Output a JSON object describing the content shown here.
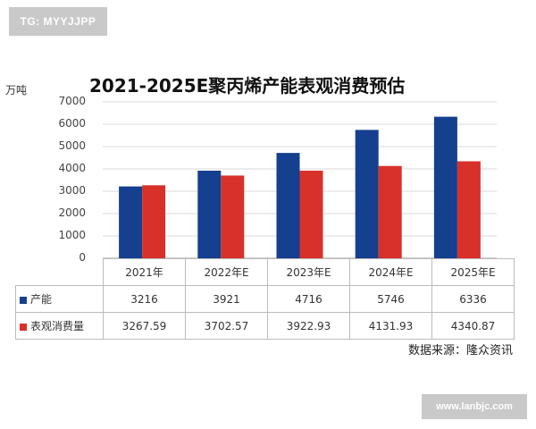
{
  "badges": {
    "top_left": "TG: MYYJJPP",
    "bottom_right": "www.lanbjc.com"
  },
  "source_text": "数据来源：隆众资讯",
  "colors": {
    "capacity": "#153f8f",
    "consumption": "#d8312a",
    "grid": "#d9d9d9",
    "axis": "#9a9a9a"
  },
  "chart_data": {
    "type": "bar",
    "title": "2021-2025E聚丙烯产能表观消费预估",
    "ylabel": "万吨",
    "xlabel": "",
    "ylim": [
      0,
      7000
    ],
    "yticks": [
      "0",
      "1000",
      "2000",
      "3000",
      "4000",
      "5000",
      "6000",
      "7000"
    ],
    "grid": true,
    "legend": "data-table",
    "categories": [
      "2021年",
      "2022年E",
      "2023年E",
      "2024年E",
      "2025年E"
    ],
    "series": [
      {
        "name": "产能",
        "values": [
          3216,
          3921,
          4716,
          5746,
          6336
        ],
        "labels": [
          "3216",
          "3921",
          "4716",
          "5746",
          "6336"
        ]
      },
      {
        "name": "表观消费量",
        "values": [
          3267.59,
          3702.57,
          3922.93,
          4131.93,
          4340.87
        ],
        "labels": [
          "3267.59",
          "3702.57",
          "3922.93",
          "4131.93",
          "4340.87"
        ]
      }
    ]
  }
}
